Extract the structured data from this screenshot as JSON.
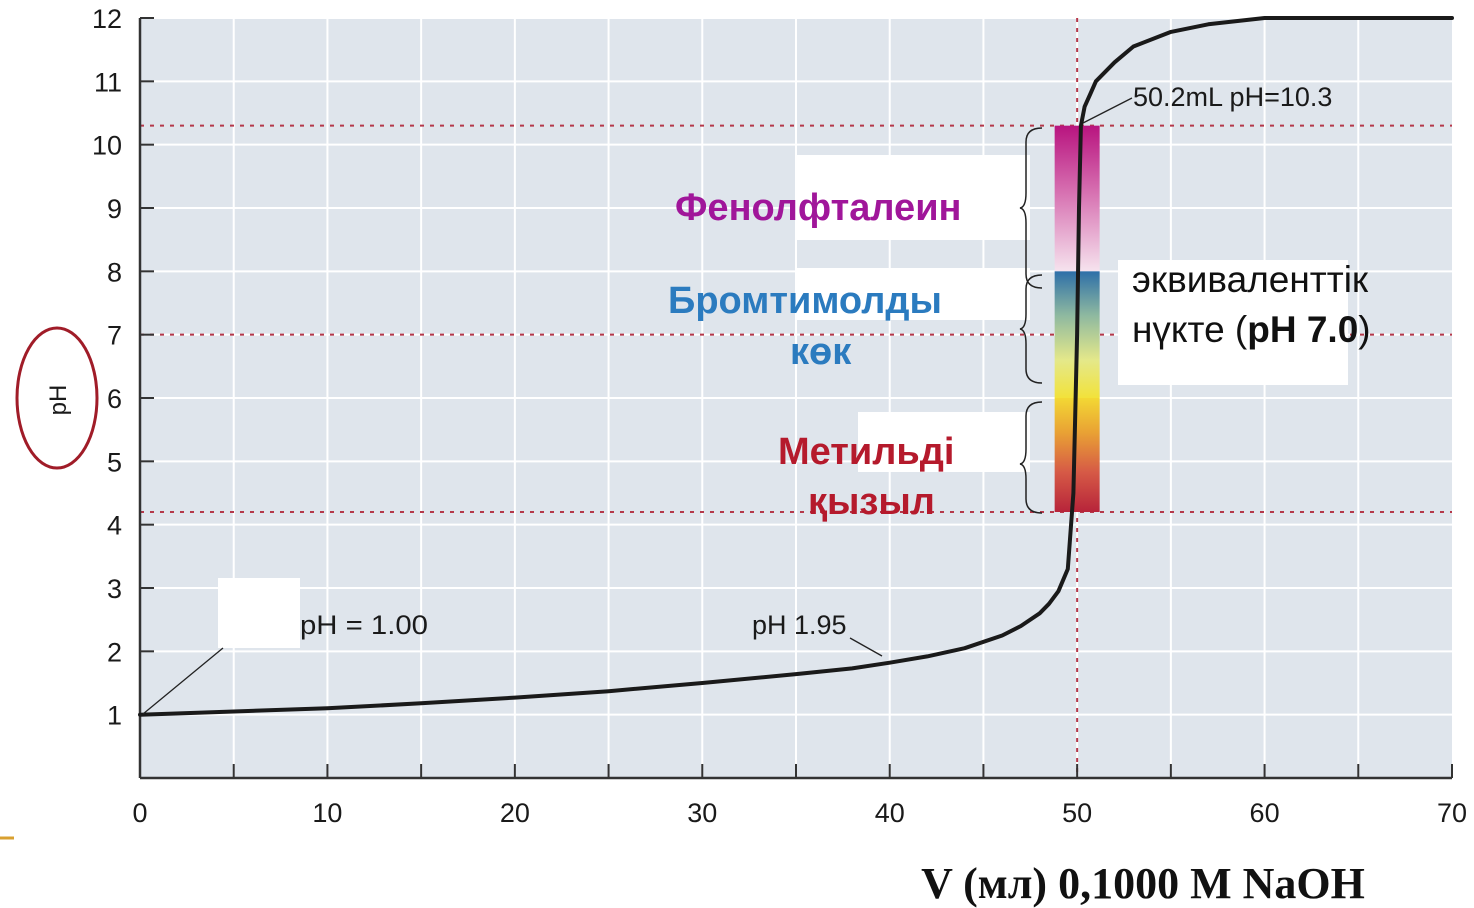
{
  "chart_data": {
    "type": "line",
    "title": "",
    "xlabel": "V (мл) 0,1000 M NaOH",
    "ylabel": "pH",
    "xlim": [
      0,
      70
    ],
    "ylim": [
      0,
      12
    ],
    "x_ticks": [
      0,
      10,
      20,
      30,
      40,
      50,
      60,
      70
    ],
    "y_ticks": [
      1,
      2,
      3,
      4,
      5,
      6,
      7,
      8,
      9,
      10,
      11,
      12
    ],
    "grid": true,
    "series": [
      {
        "color": "#1a1a1a",
        "x": [
          0,
          5,
          10,
          15,
          20,
          25,
          30,
          35,
          38,
          40,
          42,
          44,
          46,
          47,
          48,
          48.5,
          49,
          49.5,
          49.8,
          50,
          50.1,
          50.2,
          50.4,
          50.7,
          51,
          52,
          53,
          55,
          57,
          60,
          65,
          70
        ],
        "y": [
          1.0,
          1.05,
          1.1,
          1.18,
          1.27,
          1.37,
          1.5,
          1.64,
          1.73,
          1.82,
          1.92,
          2.05,
          2.25,
          2.4,
          2.6,
          2.75,
          2.95,
          3.3,
          4.5,
          7.0,
          9.0,
          10.3,
          10.6,
          10.8,
          11.0,
          11.3,
          11.55,
          11.78,
          11.9,
          12.0,
          12.0,
          12.0
        ]
      }
    ],
    "reference_lines": {
      "vertical_x": 50,
      "horizontal_y": [
        10.3,
        7.0,
        4.2
      ],
      "color": "#b5384a"
    },
    "annotations": {
      "start_point": "pH  =  1.00",
      "pre_equivalence": "pH 1.95",
      "endpoint": "50.2mL pH=10.3",
      "equivalence_line1": "эквиваленттік",
      "equivalence_line2_prefix": "нүкте (",
      "equivalence_line2_bold": "pH 7.0",
      "equivalence_line2_suffix": ")"
    },
    "indicators": [
      {
        "name": "Фенолфталеин",
        "lines": [
          "Фенолфталеин"
        ],
        "color": "#a0169a",
        "ph_range": [
          8.0,
          10.3
        ]
      },
      {
        "name": "Бромтимолды көк",
        "lines": [
          "Бромтимолды",
          "көк"
        ],
        "color": "#2b7bbf",
        "ph_range": [
          6.0,
          8.0
        ]
      },
      {
        "name": "Метильді қызыл",
        "lines": [
          "Метильді",
          "қызыл"
        ],
        "color": "#b51a2c",
        "ph_range": [
          4.2,
          6.0
        ]
      }
    ],
    "colors": {
      "plot_background": "#dfe5ec",
      "grid": "#ffffff",
      "axis": "#333333",
      "ylabel_circle": "#a01c28"
    }
  }
}
